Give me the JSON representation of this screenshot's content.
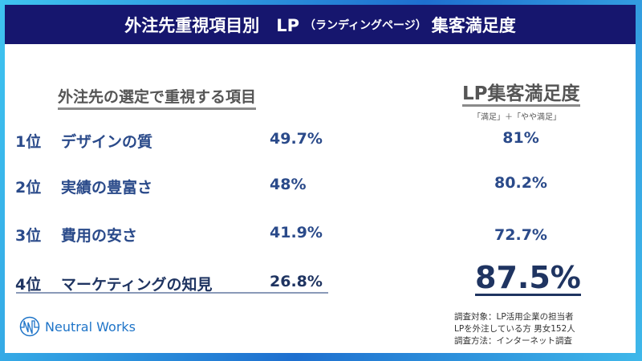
{
  "header": {
    "title_pre": "外注先重視項目別　LP",
    "title_sub": "（ランディングページ）",
    "title_post": "集客満足度"
  },
  "left_heading": "外注先の選定で重視する項目",
  "right_heading": "LP集客満足度",
  "right_note": "「満足」＋「やや満足」",
  "rows": [
    {
      "rank": "1位",
      "label": "デザインの質",
      "pct": "49.7%",
      "satisfaction": "81%"
    },
    {
      "rank": "2位",
      "label": "実績の豊富さ",
      "pct": "48%",
      "satisfaction": "80.2%"
    },
    {
      "rank": "3位",
      "label": "費用の安さ",
      "pct": "41.9%",
      "satisfaction": "72.7%"
    },
    {
      "rank": "4位",
      "label": "マーケティングの知見",
      "pct": "26.8%",
      "satisfaction": "87.5%"
    }
  ],
  "logo": {
    "text": "Neutral Works",
    "icon": "nw-logo-icon"
  },
  "footnote": [
    "調査対象：LP活用企業の担当者",
    "LPを外注している方 男女152人",
    "調査方法：インターネット調査"
  ],
  "colors": {
    "header_bg": "#16166e",
    "accent": "#2a4a8a",
    "highlight": "#1f3461"
  }
}
